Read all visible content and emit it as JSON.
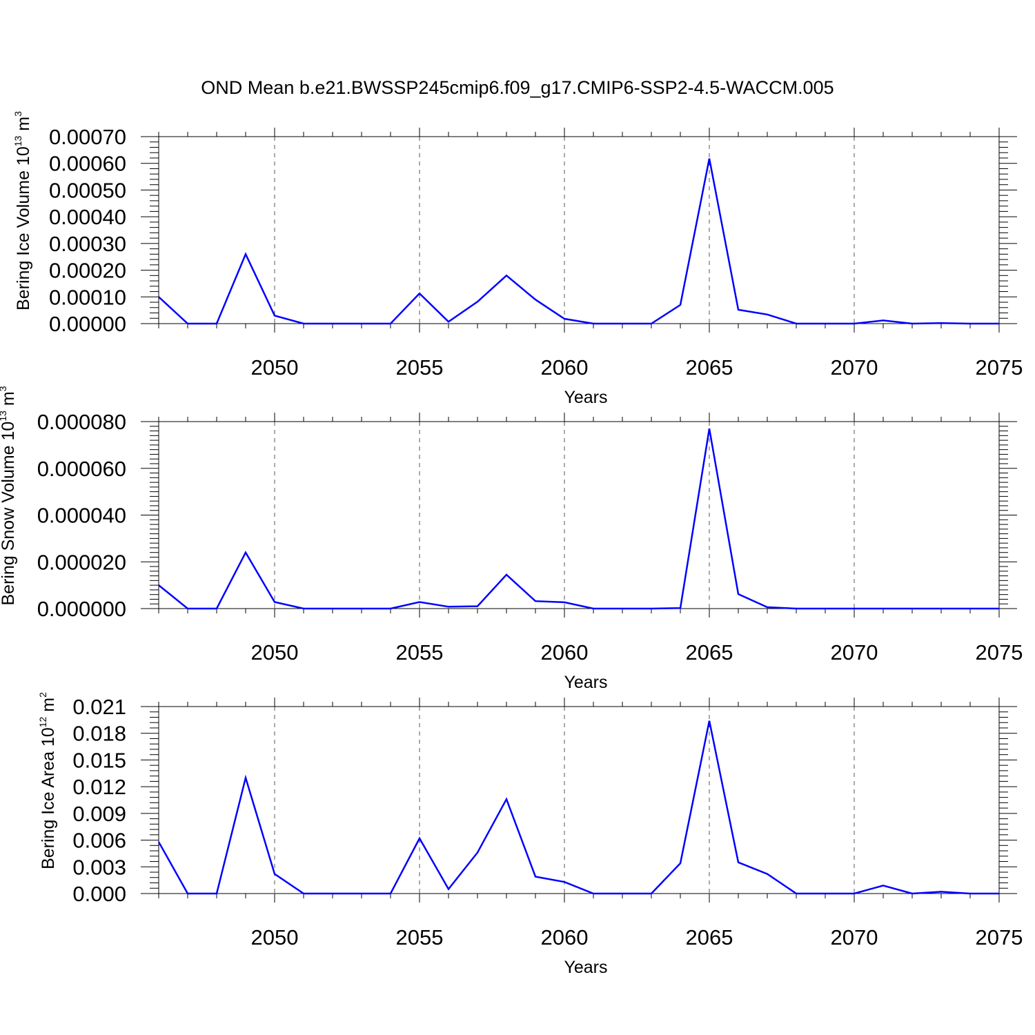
{
  "title": "OND Mean b.e21.BWSSP245cmip6.f09_g17.CMIP6-SSP2-4.5-WACCM.005",
  "colors": {
    "line": "#0000ff",
    "grid": "#555555"
  },
  "chart_data": [
    {
      "type": "line",
      "ylabel": {
        "main": "Bering Ice Volume 10",
        "sup1": "13",
        "mid": " m",
        "sup2": "3"
      },
      "xlabel": "Years",
      "xlim": [
        2046,
        2075
      ],
      "ylim": [
        0,
        0.0007
      ],
      "x_ticks": [
        "2050",
        "2055",
        "2060",
        "2065",
        "2070",
        "2075"
      ],
      "y_ticks": [
        "0.00000",
        "0.00010",
        "0.00020",
        "0.00030",
        "0.00040",
        "0.00050",
        "0.00060",
        "0.00070"
      ],
      "x_grid": [
        2050,
        2055,
        2060,
        2065,
        2070
      ],
      "series": [
        {
          "x": [
            2046,
            2047,
            2048,
            2049,
            2050,
            2051,
            2052,
            2053,
            2054,
            2055,
            2056,
            2057,
            2058,
            2059,
            2060,
            2061,
            2062,
            2063,
            2064,
            2065,
            2066,
            2067,
            2068,
            2069,
            2070,
            2071,
            2072,
            2073,
            2074,
            2075
          ],
          "values": [
            0.0001,
            0,
            0,
            0.00026,
            3e-05,
            0,
            0,
            0,
            0,
            0.000113,
            7e-06,
            8.2e-05,
            0.00018,
            9e-05,
            1.8e-05,
            0,
            0,
            0,
            7e-05,
            0.000618,
            5.2e-05,
            3.4e-05,
            0,
            0,
            0,
            1.2e-05,
            0,
            2e-06,
            0,
            0
          ]
        }
      ]
    },
    {
      "type": "line",
      "ylabel": {
        "main": "Bering Snow Volume 10",
        "sup1": "13",
        "mid": " m",
        "sup2": "3"
      },
      "xlabel": "Years",
      "xlim": [
        2046,
        2075
      ],
      "ylim": [
        0,
        8e-05
      ],
      "x_ticks": [
        "2050",
        "2055",
        "2060",
        "2065",
        "2070",
        "2075"
      ],
      "y_ticks": [
        "0.000000",
        "0.000020",
        "0.000040",
        "0.000060",
        "0.000080"
      ],
      "x_grid": [
        2050,
        2055,
        2060,
        2065,
        2070
      ],
      "series": [
        {
          "x": [
            2046,
            2047,
            2048,
            2049,
            2050,
            2051,
            2052,
            2053,
            2054,
            2055,
            2056,
            2057,
            2058,
            2059,
            2060,
            2061,
            2062,
            2063,
            2064,
            2065,
            2066,
            2067,
            2068,
            2069,
            2070,
            2071,
            2072,
            2073,
            2074,
            2075
          ],
          "values": [
            1e-05,
            0,
            0,
            2.4e-05,
            2.8e-06,
            0,
            0,
            0,
            0,
            2.8e-06,
            8e-07,
            1e-06,
            1.45e-05,
            3.2e-06,
            2.7e-06,
            0,
            0,
            0,
            2e-07,
            7.7e-05,
            6.2e-06,
            6e-07,
            0,
            0,
            0,
            0,
            0,
            0,
            0,
            0
          ]
        }
      ]
    },
    {
      "type": "line",
      "ylabel": {
        "main": "Bering Ice Area 10",
        "sup1": "12",
        "mid": " m",
        "sup2": "2"
      },
      "xlabel": "Years",
      "xlim": [
        2046,
        2075
      ],
      "ylim": [
        0,
        0.021
      ],
      "x_ticks": [
        "2050",
        "2055",
        "2060",
        "2065",
        "2070",
        "2075"
      ],
      "y_ticks": [
        "0.000",
        "0.003",
        "0.006",
        "0.009",
        "0.012",
        "0.015",
        "0.018",
        "0.021"
      ],
      "x_grid": [
        2050,
        2055,
        2060,
        2065,
        2070
      ],
      "series": [
        {
          "x": [
            2046,
            2047,
            2048,
            2049,
            2050,
            2051,
            2052,
            2053,
            2054,
            2055,
            2056,
            2057,
            2058,
            2059,
            2060,
            2061,
            2062,
            2063,
            2064,
            2065,
            2066,
            2067,
            2068,
            2069,
            2070,
            2071,
            2072,
            2073,
            2074,
            2075
          ],
          "values": [
            0.0058,
            0,
            0,
            0.013,
            0.0022,
            0,
            0,
            0,
            0,
            0.0062,
            0.0005,
            0.0046,
            0.0106,
            0.0019,
            0.0013,
            0,
            0,
            0,
            0.0034,
            0.0194,
            0.0035,
            0.0022,
            0,
            0,
            0,
            0.0009,
            0,
            0.0002,
            0,
            0
          ]
        }
      ]
    }
  ]
}
